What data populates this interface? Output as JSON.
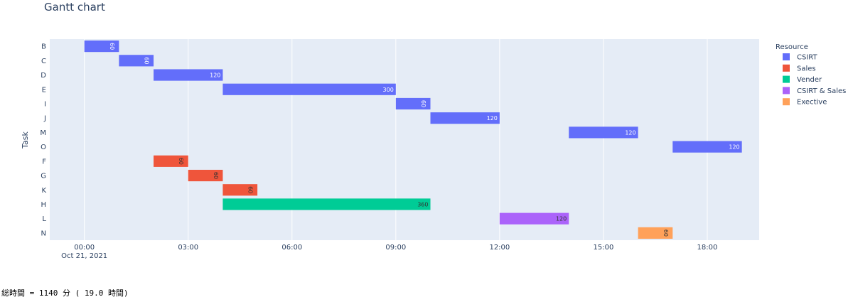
{
  "chart_data": {
    "type": "gantt",
    "title": "Gantt chart",
    "ylabel": "Task",
    "xlabel": "",
    "x_date": "Oct 21, 2021",
    "x_ticks": [
      "00:00",
      "03:00",
      "06:00",
      "09:00",
      "12:00",
      "15:00",
      "18:00"
    ],
    "x_range_hours": [
      -1.0,
      19.5
    ],
    "tasks": [
      "B",
      "C",
      "D",
      "E",
      "I",
      "J",
      "M",
      "O",
      "F",
      "G",
      "K",
      "H",
      "L",
      "N"
    ],
    "legend_title": "Resource",
    "legend_placement": "right",
    "grid": true,
    "series": [
      {
        "name": "CSIRT",
        "color": "#636efa"
      },
      {
        "name": "Sales",
        "color": "#ef553b"
      },
      {
        "name": "Vender",
        "color": "#00cc96"
      },
      {
        "name": "CSIRT & Sales",
        "color": "#ab63fa"
      },
      {
        "name": "Exective",
        "color": "#ffa15a"
      }
    ],
    "bars": [
      {
        "task": "B",
        "resource": "CSIRT",
        "start": "00:00",
        "finish": "01:00",
        "label": "60"
      },
      {
        "task": "C",
        "resource": "CSIRT",
        "start": "01:00",
        "finish": "02:00",
        "label": "60"
      },
      {
        "task": "D",
        "resource": "CSIRT",
        "start": "02:00",
        "finish": "04:00",
        "label": "120"
      },
      {
        "task": "E",
        "resource": "CSIRT",
        "start": "04:00",
        "finish": "09:00",
        "label": "300"
      },
      {
        "task": "I",
        "resource": "CSIRT",
        "start": "09:00",
        "finish": "10:00",
        "label": "60"
      },
      {
        "task": "J",
        "resource": "CSIRT",
        "start": "10:00",
        "finish": "12:00",
        "label": "120"
      },
      {
        "task": "M",
        "resource": "CSIRT",
        "start": "14:00",
        "finish": "16:00",
        "label": "120"
      },
      {
        "task": "O",
        "resource": "CSIRT",
        "start": "17:00",
        "finish": "19:00",
        "label": "120"
      },
      {
        "task": "F",
        "resource": "Sales",
        "start": "02:00",
        "finish": "03:00",
        "label": "60"
      },
      {
        "task": "G",
        "resource": "Sales",
        "start": "03:00",
        "finish": "04:00",
        "label": "60"
      },
      {
        "task": "K",
        "resource": "Sales",
        "start": "04:00",
        "finish": "05:00",
        "label": "60"
      },
      {
        "task": "H",
        "resource": "Vender",
        "start": "04:00",
        "finish": "10:00",
        "label": "360"
      },
      {
        "task": "L",
        "resource": "CSIRT & Sales",
        "start": "12:00",
        "finish": "14:00",
        "label": "120"
      },
      {
        "task": "N",
        "resource": "Exective",
        "start": "16:00",
        "finish": "17:00",
        "label": "60"
      }
    ]
  },
  "footer": {
    "text": "総時間 = 1140 分 ( 19.0 時間)"
  }
}
